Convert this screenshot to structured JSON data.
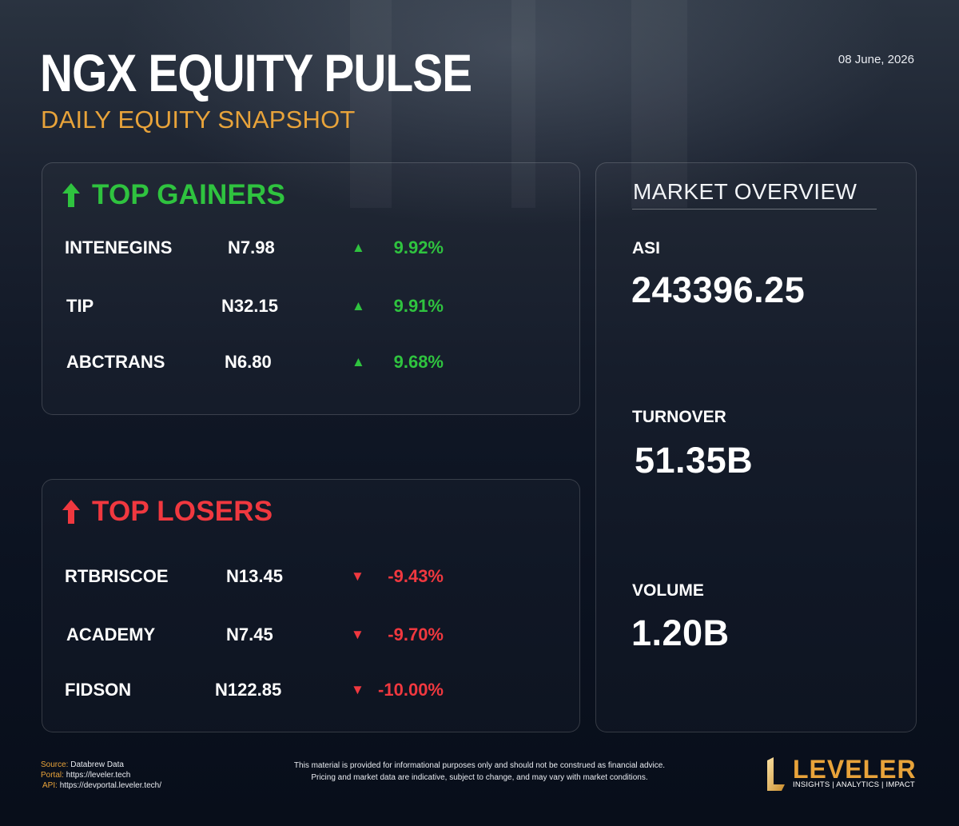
{
  "header": {
    "title": "NGX EQUITY PULSE",
    "subtitle": "DAILY EQUITY SNAPSHOT",
    "date": "08 June, 2026"
  },
  "colors": {
    "gain": "#2fc33f",
    "loss": "#f0383f",
    "accent": "#e8a33a",
    "background": "#0b1220"
  },
  "gainers": {
    "title": "TOP GAINERS",
    "icon": "arrow-up-icon",
    "arrow": "▲",
    "rows": [
      {
        "symbol": "INTENEGINS",
        "price": "N7.98",
        "change": "9.92%"
      },
      {
        "symbol": "TIP",
        "price": "N32.15",
        "change": "9.91%"
      },
      {
        "symbol": "ABCTRANS",
        "price": "N6.80",
        "change": "9.68%"
      }
    ]
  },
  "losers": {
    "title": "TOP LOSERS",
    "icon": "arrow-up-icon",
    "arrow": "▼",
    "rows": [
      {
        "symbol": "RTBRISCOE",
        "price": "N13.45",
        "change": "-9.43%"
      },
      {
        "symbol": "ACADEMY",
        "price": "N7.45",
        "change": "-9.70%"
      },
      {
        "symbol": "FIDSON",
        "price": "N122.85",
        "change": "-10.00%"
      }
    ]
  },
  "overview": {
    "title": "MARKET OVERVIEW",
    "asi_label": "ASI",
    "asi_value": "243396.25",
    "turnover_label": "TURNOVER",
    "turnover_value": "51.35B",
    "volume_label": "VOLUME",
    "volume_value": "1.20B"
  },
  "footer": {
    "source_label": "Source:",
    "source_value": "Databrew Data",
    "portal_label": "Portal:",
    "portal_value": "https://leveler.tech",
    "api_label": "API:",
    "api_value": "https://devportal.leveler.tech/",
    "disclaimer_line1": "This material is provided for informational purposes only and should not be construed as financial advice.",
    "disclaimer_line2": "Pricing and market data are indicative, subject to change, and may vary with market conditions.",
    "brand_name": "LEVELER",
    "brand_tagline": "INSIGHTS | ANALYTICS | IMPACT"
  }
}
